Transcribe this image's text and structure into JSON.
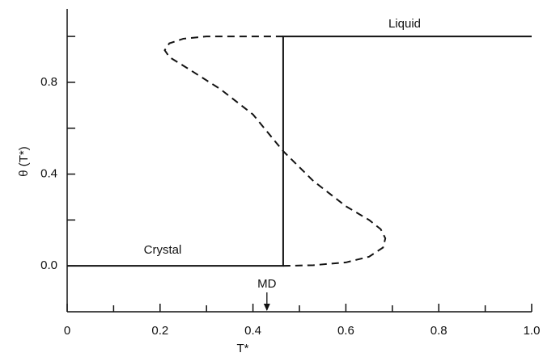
{
  "chart_data": {
    "type": "line",
    "x_label": "T*",
    "y_label": "θ (T*)",
    "xlim": [
      0,
      1.0
    ],
    "ylim": [
      -0.2,
      1.12
    ],
    "xticks": [
      0,
      0.2,
      0.4,
      0.6,
      0.8,
      {
        "value": 1.0,
        "label": "1.0"
      }
    ],
    "xminorticks": [
      0.1,
      0.3,
      0.5,
      0.7,
      0.9
    ],
    "yticks": [
      {
        "value": 0,
        "label": "0.0"
      },
      0.4,
      0.8
    ],
    "yminorticks": [
      0.2,
      0.6,
      1.0
    ],
    "series": [
      {
        "color": "#111111",
        "dashed": false,
        "x": [
          0,
          0.465,
          0.465,
          1.0
        ],
        "values": [
          0,
          0,
          1.0,
          1.0
        ]
      },
      {
        "color": "#111111",
        "dashed": true,
        "x": [
          0.465,
          0.3,
          0.25,
          0.22,
          0.21,
          0.22,
          0.26,
          0.33,
          0.4,
          0.465,
          0.53,
          0.6,
          0.65,
          0.675,
          0.685,
          0.68,
          0.65,
          0.6,
          0.53,
          0.465
        ],
        "values": [
          1.0,
          1.0,
          0.99,
          0.97,
          0.94,
          0.91,
          0.86,
          0.77,
          0.66,
          0.5,
          0.37,
          0.26,
          0.2,
          0.16,
          0.12,
          0.08,
          0.04,
          0.015,
          0.003,
          0
        ]
      }
    ],
    "annotations": [
      {
        "text": "Liquid"
      },
      {
        "text": "Crystal"
      },
      {
        "text": "MD",
        "x": 0.43
      }
    ]
  }
}
